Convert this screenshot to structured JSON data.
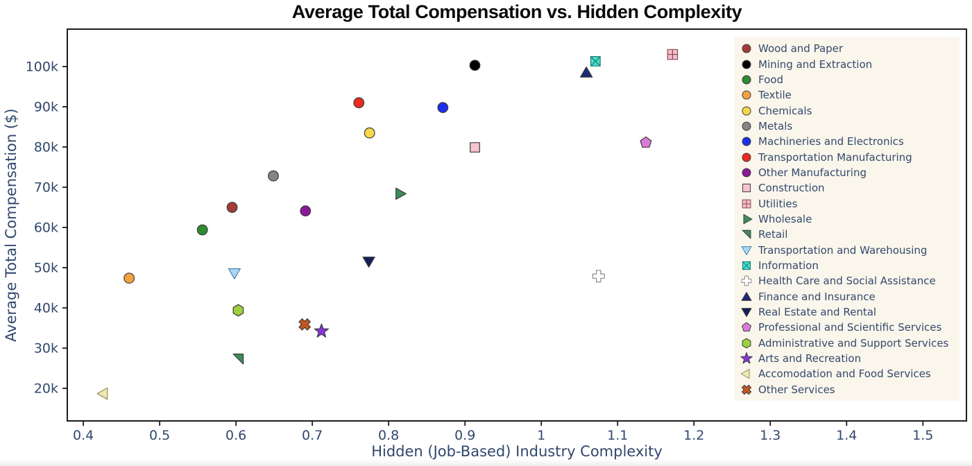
{
  "chart_data": {
    "type": "scatter",
    "title": "Average Total Compensation vs. Hidden Complexity",
    "xlabel": "Hidden (Job-Based) Industry Complexity",
    "ylabel": "Average Total Compensation ($)",
    "xlim": [
      0.379,
      1.557
    ],
    "ylim": [
      11900,
      109300
    ],
    "x_ticks": [
      0.4,
      0.5,
      0.6,
      0.7,
      0.8,
      0.9,
      1.0,
      1.1,
      1.2,
      1.3,
      1.4,
      1.5
    ],
    "x_tick_labels": [
      "0.4",
      "0.5",
      "0.6",
      "0.7",
      "0.8",
      "0.9",
      "1",
      "1.1",
      "1.2",
      "1.3",
      "1.4",
      "1.5"
    ],
    "y_ticks": [
      20000,
      30000,
      40000,
      50000,
      60000,
      70000,
      80000,
      90000,
      100000
    ],
    "y_tick_labels": [
      "20k",
      "30k",
      "40k",
      "50k",
      "60k",
      "70k",
      "80k",
      "90k",
      "100k"
    ],
    "grid": false,
    "legend_position": "inside upper right",
    "default_edge": "#3a3a3a",
    "series": [
      {
        "name": "Wood and Paper",
        "x": 0.595,
        "y": 65000,
        "symbol": "circle",
        "color": "#A33B36"
      },
      {
        "name": "Mining and Extraction",
        "x": 0.913,
        "y": 100300,
        "symbol": "circle",
        "color": "#000000"
      },
      {
        "name": "Food",
        "x": 0.556,
        "y": 59400,
        "symbol": "circle",
        "color": "#2E8B2E"
      },
      {
        "name": "Textile",
        "x": 0.46,
        "y": 47400,
        "symbol": "circle",
        "color": "#F4A43C"
      },
      {
        "name": "Chemicals",
        "x": 0.775,
        "y": 83500,
        "symbol": "circle",
        "color": "#F6D84B"
      },
      {
        "name": "Metals",
        "x": 0.649,
        "y": 72800,
        "symbol": "circle",
        "color": "#848484"
      },
      {
        "name": "Machineries and Electronics",
        "x": 0.871,
        "y": 89800,
        "symbol": "circle",
        "color": "#1D2FEE"
      },
      {
        "name": "Transportation Manufacturing",
        "x": 0.761,
        "y": 91000,
        "symbol": "circle",
        "color": "#EA2B1D"
      },
      {
        "name": "Other Manufacturing",
        "x": 0.691,
        "y": 64100,
        "symbol": "circle",
        "color": "#8A189B"
      },
      {
        "name": "Construction",
        "x": 0.913,
        "y": 79900,
        "symbol": "square",
        "color": "#F6C3D0"
      },
      {
        "name": "Utilities",
        "x": 1.172,
        "y": 103000,
        "symbol": "square-cross",
        "color": "#F3BCC9",
        "edge": "#8B4A54"
      },
      {
        "name": "Wholesale",
        "x": 0.814,
        "y": 68400,
        "symbol": "triangle-right",
        "color": "#3C8D5B"
      },
      {
        "name": "Retail",
        "x": 0.603,
        "y": 27300,
        "symbol": "triangle-se",
        "color": "#3C8D5B"
      },
      {
        "name": "Transportation and Warehousing",
        "x": 0.598,
        "y": 48600,
        "symbol": "triangle-down",
        "color": "#A6D8F2",
        "edge": "#4D7EA8"
      },
      {
        "name": "Information",
        "x": 1.071,
        "y": 101300,
        "symbol": "square-x",
        "color": "#49DECE",
        "edge": "#157A6E"
      },
      {
        "name": "Health Care and Social Assistance",
        "x": 1.075,
        "y": 47900,
        "symbol": "cross",
        "color": "#FFFFFF",
        "edge": "#8A8A8A"
      },
      {
        "name": "Finance and Insurance",
        "x": 1.059,
        "y": 98500,
        "symbol": "triangle-up",
        "color": "#1C2B72"
      },
      {
        "name": "Real Estate and Rental",
        "x": 0.774,
        "y": 51500,
        "symbol": "triangle-down",
        "color": "#141F58"
      },
      {
        "name": "Professional and Scientific Services",
        "x": 1.137,
        "y": 81100,
        "symbol": "pentagon",
        "color": "#D97CD9"
      },
      {
        "name": "Administrative and Support Services",
        "x": 0.603,
        "y": 39400,
        "symbol": "hexagon",
        "color": "#9ED13C"
      },
      {
        "name": "Arts and Recreation",
        "x": 0.712,
        "y": 34200,
        "symbol": "star",
        "color": "#8734E0"
      },
      {
        "name": "Accomodation and Food Services",
        "x": 0.427,
        "y": 18700,
        "symbol": "triangle-left",
        "color": "#EFE9B0",
        "edge": "#8F8A5A"
      },
      {
        "name": "Other Services",
        "x": 0.69,
        "y": 35900,
        "symbol": "x",
        "color": "#C2571E"
      }
    ]
  },
  "style": {
    "axis_text_color": "#30486C",
    "title_color": "#0a0a0a",
    "spine_color": "#1c1c1c",
    "legend_background": "#FAF6EC",
    "legend_text_color": "#33496B",
    "plot_background": "#ffffff"
  }
}
